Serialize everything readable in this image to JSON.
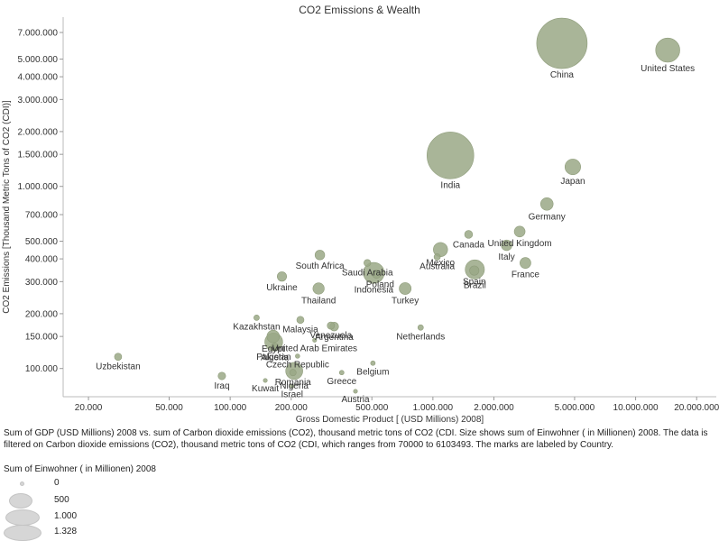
{
  "chart_data": {
    "type": "scatter",
    "title": "CO2 Emissions & Wealth",
    "xlabel": "Gross Domestic Product [ (USD Millions) 2008]",
    "ylabel": "CO2 Emissions [Thousand Metric Tons of CO2 (CDI)]",
    "x_scale": "log",
    "y_scale": "log",
    "xlim": [
      15000,
      25000000
    ],
    "ylim": [
      70000,
      8500000
    ],
    "grid": false,
    "x_ticks": [
      {
        "value": 20000,
        "label": "20.000"
      },
      {
        "value": 50000,
        "label": "50.000"
      },
      {
        "value": 100000,
        "label": "100.000"
      },
      {
        "value": 200000,
        "label": "200.000"
      },
      {
        "value": 500000,
        "label": "500.000"
      },
      {
        "value": 1000000,
        "label": "1.000.000"
      },
      {
        "value": 2000000,
        "label": "2.000.000"
      },
      {
        "value": 5000000,
        "label": "5.000.000"
      },
      {
        "value": 10000000,
        "label": "10.000.000"
      },
      {
        "value": 20000000,
        "label": "20.000.000"
      }
    ],
    "y_ticks": [
      {
        "value": 100000,
        "label": "100.000"
      },
      {
        "value": 150000,
        "label": "150.000"
      },
      {
        "value": 200000,
        "label": "200.000"
      },
      {
        "value": 300000,
        "label": "300.000"
      },
      {
        "value": 400000,
        "label": "400.000"
      },
      {
        "value": 500000,
        "label": "500.000"
      },
      {
        "value": 700000,
        "label": "700.000"
      },
      {
        "value": 1000000,
        "label": "1.000.000"
      },
      {
        "value": 1500000,
        "label": "1.500.000"
      },
      {
        "value": 2000000,
        "label": "2.000.000"
      },
      {
        "value": 3000000,
        "label": "3.000.000"
      },
      {
        "value": 4000000,
        "label": "4.000.000"
      },
      {
        "value": 5000000,
        "label": "5.000.000"
      },
      {
        "value": 7000000,
        "label": "7.000.000"
      }
    ],
    "marker_color": "#9aa886",
    "points": [
      {
        "country": "China",
        "x": 4330000,
        "y": 6103000,
        "pop": 1328,
        "label_pos": "below"
      },
      {
        "country": "United States",
        "x": 14400000,
        "y": 5600000,
        "pop": 304,
        "label_pos": "below"
      },
      {
        "country": "India",
        "x": 1220000,
        "y": 1480000,
        "pop": 1140,
        "label_pos": "below"
      },
      {
        "country": "Japan",
        "x": 4900000,
        "y": 1280000,
        "pop": 128,
        "label_pos": "below"
      },
      {
        "country": "Germany",
        "x": 3650000,
        "y": 800000,
        "pop": 82,
        "label_pos": "below"
      },
      {
        "country": "United Kingdom",
        "x": 2680000,
        "y": 565000,
        "pop": 61,
        "label_pos": "below"
      },
      {
        "country": "Canada",
        "x": 1500000,
        "y": 545000,
        "pop": 33,
        "label_pos": "below"
      },
      {
        "country": "Italy",
        "x": 2310000,
        "y": 475000,
        "pop": 59,
        "label_pos": "below"
      },
      {
        "country": "Australia",
        "x": 1050000,
        "y": 410000,
        "pop": 21,
        "label_pos": "below"
      },
      {
        "country": "Mexico",
        "x": 1090000,
        "y": 450000,
        "pop": 106,
        "label_pos": "below"
      },
      {
        "country": "France",
        "x": 2860000,
        "y": 380000,
        "pop": 62,
        "label_pos": "below"
      },
      {
        "country": "South Africa",
        "x": 277000,
        "y": 420000,
        "pop": 49,
        "label_pos": "below"
      },
      {
        "country": "Saudi Arabia",
        "x": 475000,
        "y": 380000,
        "pop": 25,
        "label_pos": "below"
      },
      {
        "country": "Poland",
        "x": 527000,
        "y": 330000,
        "pop": 38,
        "label_pos": "belowright"
      },
      {
        "country": "Indonesia",
        "x": 511000,
        "y": 335000,
        "pop": 228,
        "label_pos": "below"
      },
      {
        "country": "Spain",
        "x": 1600000,
        "y": 345000,
        "pop": 46,
        "label_pos": "below"
      },
      {
        "country": "Brazil",
        "x": 1610000,
        "y": 350000,
        "pop": 192,
        "label_pos": "below"
      },
      {
        "country": "Ukraine",
        "x": 180000,
        "y": 320000,
        "pop": 46,
        "label_pos": "below"
      },
      {
        "country": "Thailand",
        "x": 273000,
        "y": 275000,
        "pop": 67,
        "label_pos": "below"
      },
      {
        "country": "Turkey",
        "x": 730000,
        "y": 275000,
        "pop": 74,
        "label_pos": "below"
      },
      {
        "country": "Kazakhstan",
        "x": 135000,
        "y": 190000,
        "pop": 16,
        "label_pos": "below"
      },
      {
        "country": "Malaysia",
        "x": 222000,
        "y": 185000,
        "pop": 27,
        "label_pos": "below"
      },
      {
        "country": "Venezuela",
        "x": 314000,
        "y": 172000,
        "pop": 28,
        "label_pos": "below"
      },
      {
        "country": "Argentina",
        "x": 326000,
        "y": 170000,
        "pop": 40,
        "label_pos": "below"
      },
      {
        "country": "Netherlands",
        "x": 870000,
        "y": 168000,
        "pop": 16,
        "label_pos": "below"
      },
      {
        "country": "Egypt",
        "x": 163000,
        "y": 150000,
        "pop": 82,
        "label_pos": "below"
      },
      {
        "country": "United Arab Emirates",
        "x": 261000,
        "y": 143000,
        "pop": 5,
        "label_pos": "below"
      },
      {
        "country": "Pakistan",
        "x": 164000,
        "y": 140000,
        "pop": 166,
        "label_pos": "below"
      },
      {
        "country": "Algeria",
        "x": 166000,
        "y": 131000,
        "pop": 34,
        "label_pos": "below"
      },
      {
        "country": "Czech Republic",
        "x": 215000,
        "y": 117000,
        "pop": 10,
        "label_pos": "below"
      },
      {
        "country": "Uzbekistan",
        "x": 28000,
        "y": 116000,
        "pop": 27,
        "label_pos": "below"
      },
      {
        "country": "Belgium",
        "x": 506000,
        "y": 107000,
        "pop": 11,
        "label_pos": "below"
      },
      {
        "country": "Nigeria",
        "x": 207000,
        "y": 97000,
        "pop": 151,
        "label_pos": "below"
      },
      {
        "country": "Romania",
        "x": 204000,
        "y": 95000,
        "pop": 22,
        "label_pos": "below"
      },
      {
        "country": "Greece",
        "x": 355000,
        "y": 95000,
        "pop": 11,
        "label_pos": "below"
      },
      {
        "country": "Iraq",
        "x": 91000,
        "y": 91000,
        "pop": 30,
        "label_pos": "below"
      },
      {
        "country": "Kuwait",
        "x": 149000,
        "y": 86000,
        "pop": 3,
        "label_pos": "below"
      },
      {
        "country": "Israel",
        "x": 202000,
        "y": 80000,
        "pop": 7,
        "label_pos": "below"
      },
      {
        "country": "Austria",
        "x": 415000,
        "y": 75000,
        "pop": 8,
        "label_pos": "below"
      }
    ],
    "size_legend": {
      "title": "Sum of Einwohner ( in Millionen) 2008",
      "entries": [
        {
          "value": 0,
          "label": "0"
        },
        {
          "value": 500,
          "label": "500"
        },
        {
          "value": 1000,
          "label": "1.000"
        },
        {
          "value": 1328,
          "label": "1.328"
        }
      ]
    },
    "caption": "Sum of GDP (USD Millions) 2008 vs. sum of Carbon dioxide emissions (CO2), thousand metric tons of CO2 (CDI.  Size shows sum of Einwohner ( in Millionen) 2008. The data is filtered on Carbon dioxide emissions (CO2), thousand metric tons of CO2 (CDI, which ranges from 70000 to 6103493.  The marks are labeled by Country."
  }
}
